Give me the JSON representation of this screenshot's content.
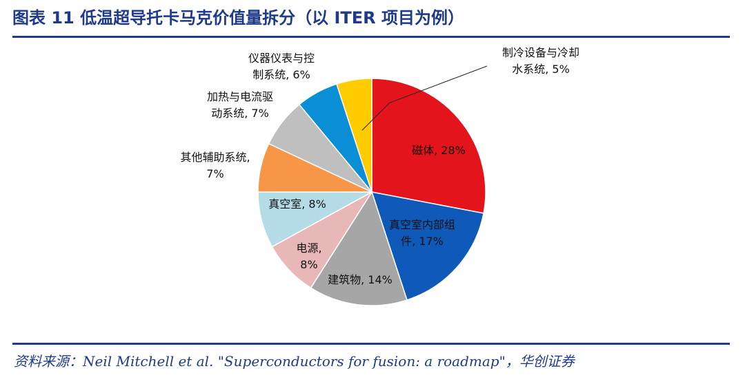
{
  "title": "图表 11   低温超导托卡马克价值量拆分（以 ITER 项目为例）",
  "source": "资料来源：Neil Mitchell et al. \"Superconductors for fusion: a roadmap\"，华创证券",
  "chart_data": {
    "type": "pie",
    "slices": [
      {
        "name": "磁体",
        "value": 28,
        "label": [
          "磁体, 28%"
        ],
        "color": "#e3141b"
      },
      {
        "name": "真空室内部组件",
        "value": 17,
        "label": [
          "真空室内部组",
          "件, 17%"
        ],
        "color": "#0f59b8"
      },
      {
        "name": "建筑物",
        "value": 14,
        "label": [
          "建筑物, 14%"
        ],
        "color": "#a6a6a6"
      },
      {
        "name": "电源",
        "value": 8,
        "label": [
          "电源,",
          "8%"
        ],
        "color": "#e8b8b8"
      },
      {
        "name": "真空室",
        "value": 8,
        "label": [
          "真空室, 8%"
        ],
        "color": "#b5dbe7"
      },
      {
        "name": "其他辅助系统",
        "value": 7,
        "label": [
          "其他辅助系统,",
          "7%"
        ],
        "color": "#f79646"
      },
      {
        "name": "加热与电流驱动系统",
        "value": 7,
        "label": [
          "加热与电流驱",
          "动系统, 7%"
        ],
        "color": "#bfbfbf"
      },
      {
        "name": "仪器仪表与控制系统",
        "value": 6,
        "label": [
          "仪器仪表与控",
          "制系统, 6%"
        ],
        "color": "#0a8ed6"
      },
      {
        "name": "制冷设备与冷却水系统",
        "value": 5,
        "label": [
          "制冷设备与冷却",
          "水系统, 5%"
        ],
        "color": "#ffcc00"
      }
    ]
  }
}
